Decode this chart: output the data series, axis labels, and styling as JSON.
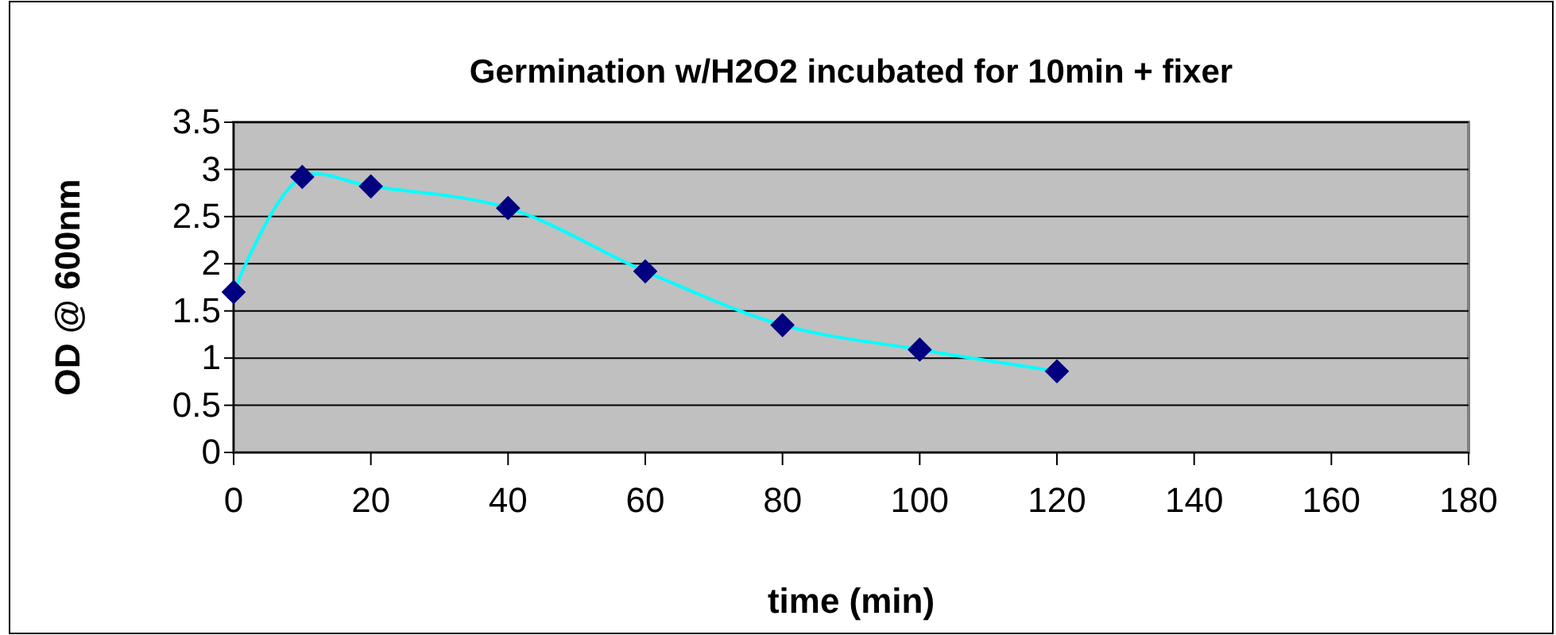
{
  "chart_data": {
    "type": "line",
    "title": "Germination w/H2O2 incubated for 10min + fixer",
    "xlabel": "time (min)",
    "ylabel": "OD @ 600nm",
    "x": [
      0,
      10,
      20,
      40,
      60,
      80,
      100,
      120
    ],
    "series": [
      {
        "color": "#00ffff",
        "values": [
          1.7,
          2.92,
          2.82,
          2.59,
          1.92,
          1.35,
          1.09,
          0.86
        ]
      }
    ],
    "marker": "diamond",
    "xlim": [
      0,
      180
    ],
    "xticks": [
      0,
      20,
      40,
      60,
      80,
      100,
      120,
      140,
      160,
      180
    ],
    "ylim": [
      0,
      3.5
    ],
    "yticks": [
      0,
      0.5,
      1,
      1.5,
      2,
      2.5,
      3,
      3.5
    ],
    "grid": "y"
  }
}
